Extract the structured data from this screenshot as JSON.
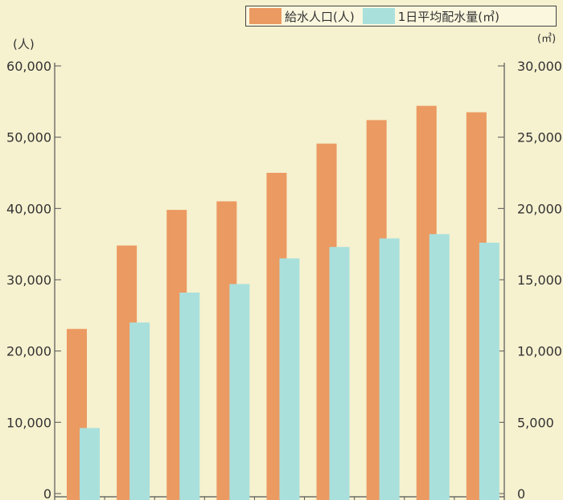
{
  "chart_data": {
    "type": "bar",
    "legend_position": "top-right",
    "grid": false,
    "y_left": {
      "unit_label": "(人)",
      "min": 0,
      "max": 60000,
      "ticks": [
        "0",
        "10,000",
        "20,000",
        "30,000",
        "40,000",
        "50,000",
        "60,000"
      ]
    },
    "y_right": {
      "unit_label": "(㎥)",
      "min": 0,
      "max": 30000,
      "ticks": [
        "0",
        "5,000",
        "10,000",
        "15,000",
        "20,000",
        "25,000",
        "30,000"
      ]
    },
    "categories": [
      "",
      "",
      "",
      "",
      "",
      "",
      "",
      "",
      ""
    ],
    "series": [
      {
        "name": "給水人口(人)",
        "axis": "left",
        "color": "#eb9a62",
        "values": [
          23100,
          34800,
          39800,
          41000,
          45000,
          49100,
          52400,
          54400,
          53500
        ]
      },
      {
        "name": "1日平均配水量(㎥)",
        "axis": "right",
        "color": "#a9e0dc",
        "values": [
          4600,
          12000,
          14100,
          14700,
          16500,
          17300,
          17900,
          18200,
          17600
        ]
      }
    ]
  }
}
